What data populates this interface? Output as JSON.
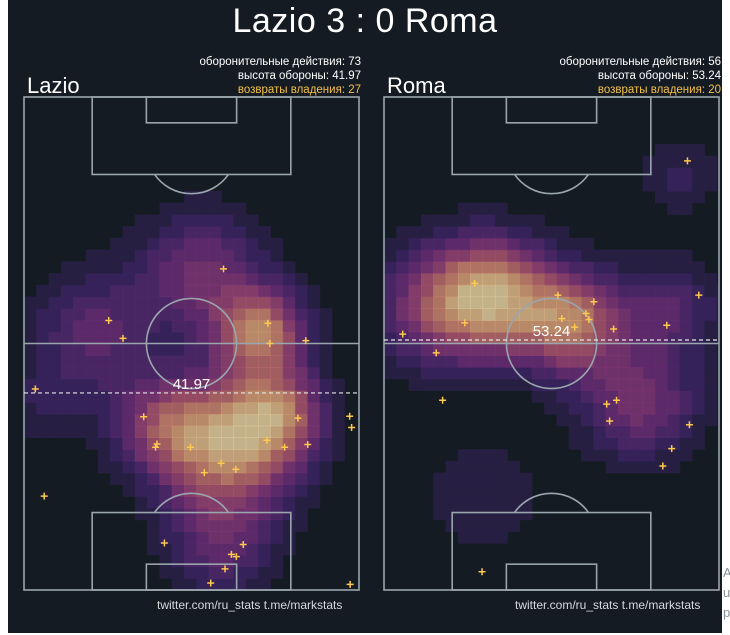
{
  "title": "Lazio 3 : 0 Roma",
  "colors": {
    "background": "#141b22",
    "pitch_lines": "#9aa5ad",
    "marker": "#ffc94d",
    "accent_text": "#f5c04a"
  },
  "chart_data": [
    {
      "type": "heatmap",
      "team": "Lazio",
      "stats": {
        "defensive_actions": "оборонительные действия: 73",
        "defense_height": "высота обороны: 41.97",
        "possession_regains": "возвраты владения: 27"
      },
      "defense_line": 41.97,
      "defense_line_label": "41.97",
      "x_range": [
        0,
        68
      ],
      "y_range": [
        0,
        105
      ],
      "points": [
        {
          "x": 40.5,
          "y": 68.4
        },
        {
          "x": 17.2,
          "y": 57.4
        },
        {
          "x": 20.1,
          "y": 53.6
        },
        {
          "x": 49.5,
          "y": 56.8
        },
        {
          "x": 57.2,
          "y": 53.1
        },
        {
          "x": 49.9,
          "y": 52.5
        },
        {
          "x": 2.3,
          "y": 42.8
        },
        {
          "x": 24.3,
          "y": 36.9
        },
        {
          "x": 55.6,
          "y": 36.6
        },
        {
          "x": 66.1,
          "y": 37.0
        },
        {
          "x": 66.5,
          "y": 34.6
        },
        {
          "x": 49.3,
          "y": 31.9
        },
        {
          "x": 52.9,
          "y": 30.4
        },
        {
          "x": 27.0,
          "y": 31.1
        },
        {
          "x": 26.7,
          "y": 30.4
        },
        {
          "x": 57.6,
          "y": 31.0
        },
        {
          "x": 33.8,
          "y": 30.4
        },
        {
          "x": 40.0,
          "y": 27.0
        },
        {
          "x": 43.0,
          "y": 25.7
        },
        {
          "x": 36.6,
          "y": 25.0
        },
        {
          "x": 4.1,
          "y": 20.0
        },
        {
          "x": 28.5,
          "y": 10.0
        },
        {
          "x": 44.5,
          "y": 9.7
        },
        {
          "x": 42.1,
          "y": 7.6
        },
        {
          "x": 43.1,
          "y": 7.1
        },
        {
          "x": 40.8,
          "y": 4.5
        },
        {
          "x": 37.9,
          "y": 1.5
        },
        {
          "x": 66.2,
          "y": 1.2
        }
      ],
      "blobs": [
        {
          "x": 48.0,
          "y": 55.0,
          "w": 1.0,
          "s": 6.5
        },
        {
          "x": 36.0,
          "y": 68.0,
          "w": 0.55,
          "s": 9.0
        },
        {
          "x": 42.0,
          "y": 31.0,
          "w": 1.1,
          "s": 9.5
        },
        {
          "x": 52.0,
          "y": 38.0,
          "w": 0.7,
          "s": 6.5
        },
        {
          "x": 28.0,
          "y": 35.0,
          "w": 0.6,
          "s": 7.5
        },
        {
          "x": 14.0,
          "y": 55.0,
          "w": 0.45,
          "s": 9.0
        },
        {
          "x": 40.0,
          "y": 10.0,
          "w": 0.45,
          "s": 8.0
        },
        {
          "x": 4.0,
          "y": 40.0,
          "w": 0.2,
          "s": 6.0
        }
      ]
    },
    {
      "type": "heatmap",
      "team": "Roma",
      "stats": {
        "defensive_actions": "оборонительные действия: 56",
        "defense_height": "высота обороны: 53.24",
        "possession_regains": "возвраты владения: 20"
      },
      "defense_line": 53.24,
      "defense_line_label": "53.24",
      "x_range": [
        0,
        68
      ],
      "y_range": [
        0,
        105
      ],
      "points": [
        {
          "x": 61.6,
          "y": 91.4
        },
        {
          "x": 18.4,
          "y": 65.3
        },
        {
          "x": 35.3,
          "y": 62.8
        },
        {
          "x": 42.6,
          "y": 61.4
        },
        {
          "x": 36.1,
          "y": 57.8
        },
        {
          "x": 41.6,
          "y": 57.6
        },
        {
          "x": 16.4,
          "y": 56.9
        },
        {
          "x": 41.0,
          "y": 58.9
        },
        {
          "x": 46.6,
          "y": 55.6
        },
        {
          "x": 57.4,
          "y": 56.4
        },
        {
          "x": 3.8,
          "y": 54.5
        },
        {
          "x": 10.6,
          "y": 50.5
        },
        {
          "x": 38.7,
          "y": 56.0
        },
        {
          "x": 11.9,
          "y": 40.4
        },
        {
          "x": 47.2,
          "y": 40.4
        },
        {
          "x": 45.2,
          "y": 39.6
        },
        {
          "x": 45.8,
          "y": 36.0
        },
        {
          "x": 62.0,
          "y": 35.2
        },
        {
          "x": 58.4,
          "y": 30.1
        },
        {
          "x": 56.6,
          "y": 26.4
        },
        {
          "x": 19.9,
          "y": 3.9
        },
        {
          "x": 63.9,
          "y": 62.8
        }
      ],
      "blobs": [
        {
          "x": 22.0,
          "y": 63.0,
          "w": 1.0,
          "s": 8.5
        },
        {
          "x": 38.0,
          "y": 57.0,
          "w": 0.9,
          "s": 7.5
        },
        {
          "x": 10.0,
          "y": 60.0,
          "w": 0.55,
          "s": 9.0
        },
        {
          "x": 52.0,
          "y": 40.0,
          "w": 0.55,
          "s": 8.5
        },
        {
          "x": 58.0,
          "y": 60.0,
          "w": 0.4,
          "s": 7.0
        },
        {
          "x": 20.0,
          "y": 20.0,
          "w": 0.2,
          "s": 9.0
        },
        {
          "x": 60.0,
          "y": 88.0,
          "w": 0.22,
          "s": 6.0
        }
      ]
    }
  ],
  "footer": {
    "left": "twitter.com/ru_stats  t.me/markstats",
    "right": "twitter.com/ru_stats  t.me/markstats"
  }
}
